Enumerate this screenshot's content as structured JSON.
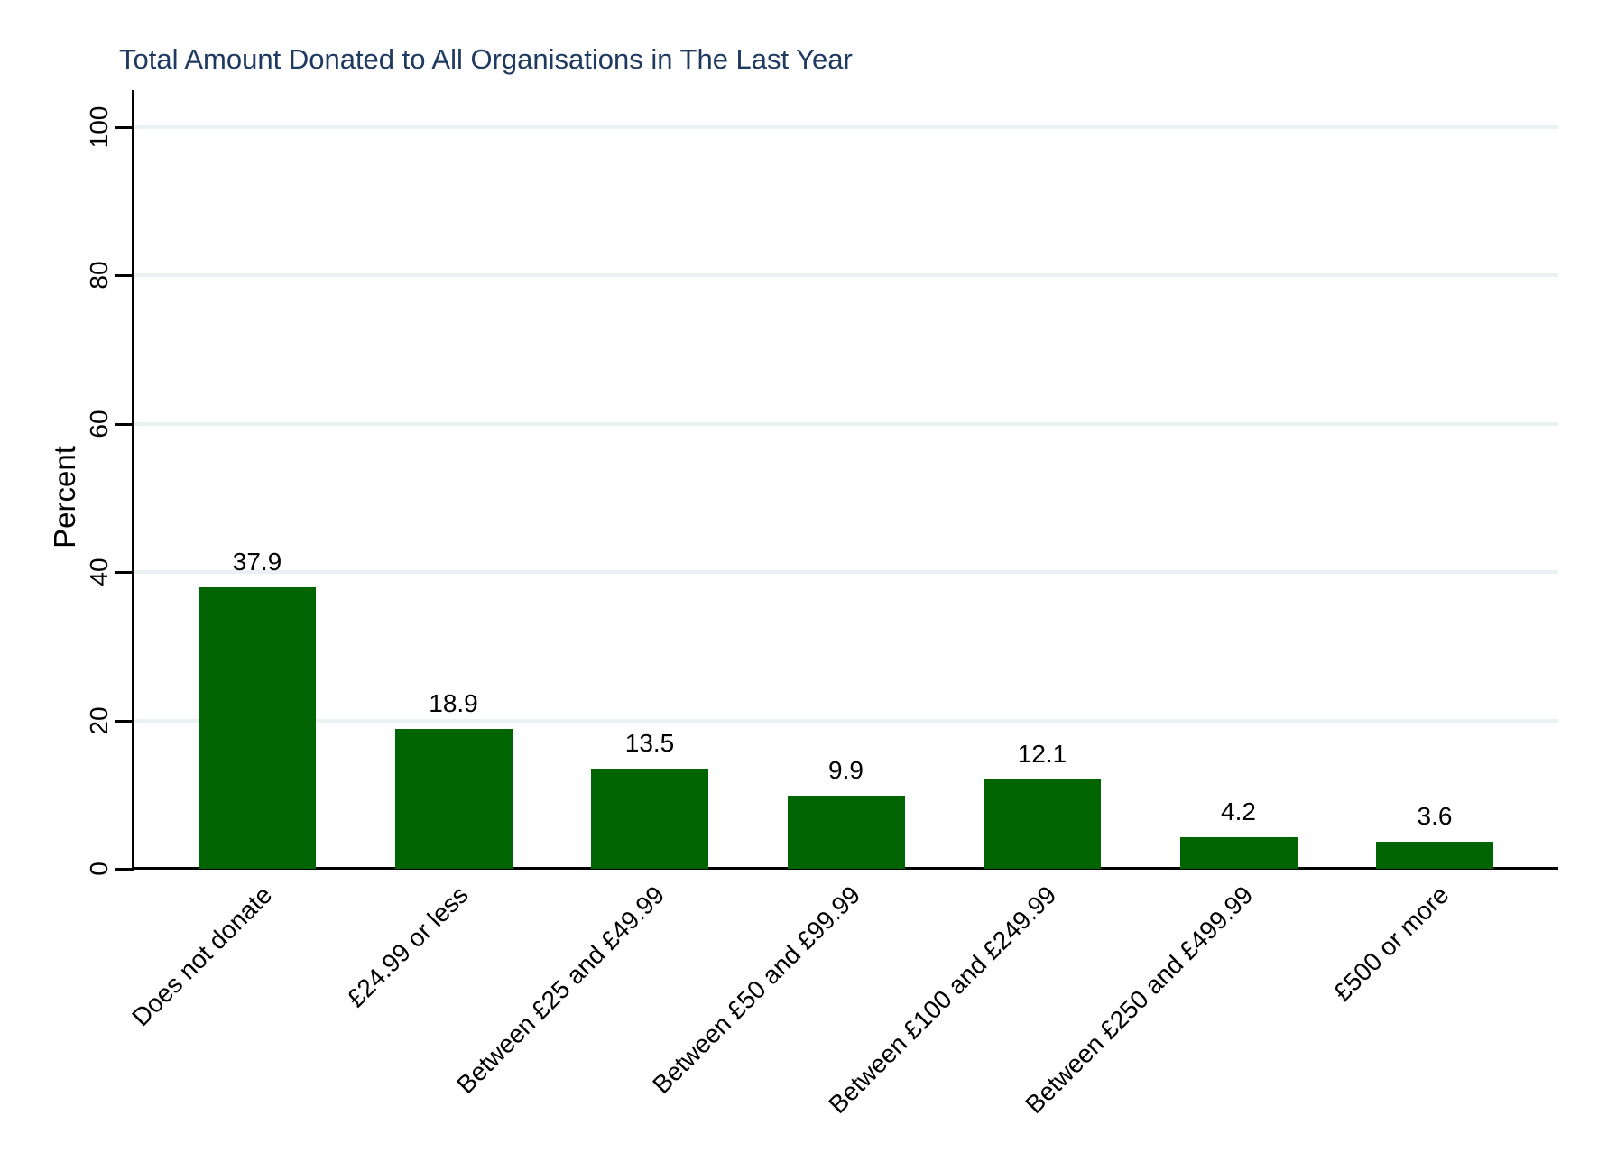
{
  "chart_data": {
    "type": "bar",
    "title": "Total Amount Donated to All Organisations in The Last Year",
    "categories": [
      "Does not donate",
      "£24.99 or less",
      "Between £25 and £49.99",
      "Between £50 and £99.99",
      "Between £100 and £249.99",
      "Between £250 and £499.99",
      "£500 or more"
    ],
    "values": [
      37.9,
      18.9,
      13.5,
      9.9,
      12.1,
      4.2,
      3.6
    ],
    "value_labels": [
      "37.9",
      "18.9",
      "13.5",
      "9.9",
      "12.1",
      "4.2",
      "3.6"
    ],
    "xlabel": "",
    "ylabel": "Percent",
    "ylim": [
      0,
      100
    ],
    "yticks": [
      0,
      20,
      40,
      60,
      80,
      100
    ],
    "grid": true,
    "legend_position": "none",
    "bar_color": "#006400",
    "grid_color": "#eaf1f3",
    "axis_color": "#000000",
    "title_color": "#1f3a60"
  }
}
